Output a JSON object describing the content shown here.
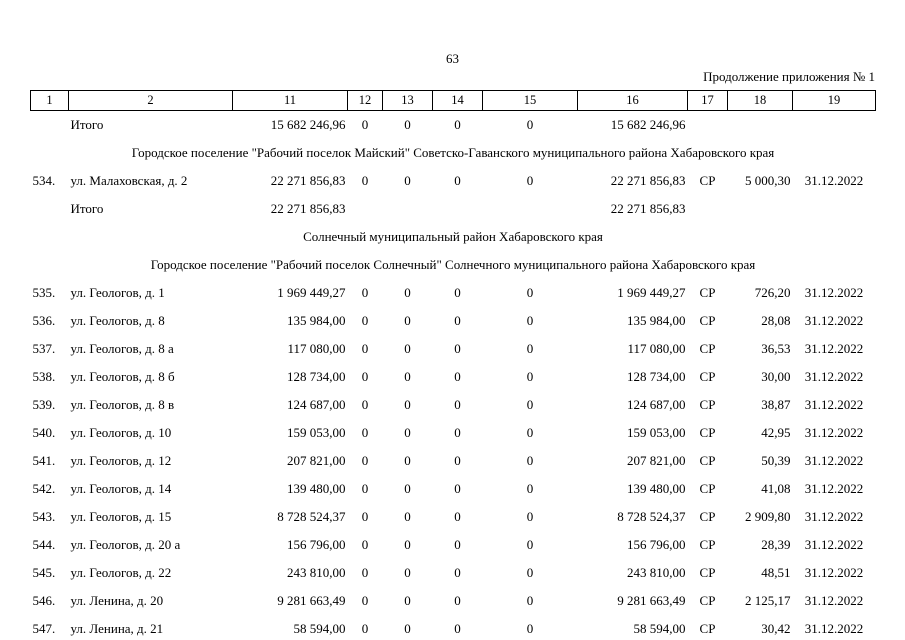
{
  "page": {
    "number": "63",
    "continuation_note": "Продолжение приложения № 1"
  },
  "table": {
    "columns": [
      "1",
      "2",
      "11",
      "12",
      "13",
      "14",
      "15",
      "16",
      "17",
      "18",
      "19"
    ],
    "rows": [
      {
        "type": "total",
        "label": "Итого",
        "col11": "15 682 246,96",
        "col12": "0",
        "col13": "0",
        "col14": "0",
        "col15": "0",
        "col16": "15 682 246,96"
      },
      {
        "type": "section",
        "text": "Городское поселение \"Рабочий поселок Майский\"  Советско-Гаванского муниципального района Хабаровского края"
      },
      {
        "type": "data",
        "num": "534.",
        "address": "ул. Малаховская, д. 2",
        "col11": "22 271 856,83",
        "col12": "0",
        "col13": "0",
        "col14": "0",
        "col15": "0",
        "col16": "22 271 856,83",
        "col17": "СР",
        "col18": "5 000,30",
        "col19": "31.12.2022"
      },
      {
        "type": "total",
        "label": "Итого",
        "col11": "22 271 856,83",
        "col16": "22 271 856,83"
      },
      {
        "type": "section",
        "text": "Солнечный муниципальный район Хабаровского края"
      },
      {
        "type": "section",
        "text": "Городское поселение \"Рабочий поселок Солнечный\" Солнечного муниципального района Хабаровского края"
      },
      {
        "type": "data",
        "num": "535.",
        "address": "ул. Геологов, д. 1",
        "col11": "1 969 449,27",
        "col12": "0",
        "col13": "0",
        "col14": "0",
        "col15": "0",
        "col16": "1 969 449,27",
        "col17": "СР",
        "col18": "726,20",
        "col19": "31.12.2022"
      },
      {
        "type": "data",
        "num": "536.",
        "address": "ул. Геологов, д. 8",
        "col11": "135 984,00",
        "col12": "0",
        "col13": "0",
        "col14": "0",
        "col15": "0",
        "col16": "135 984,00",
        "col17": "СР",
        "col18": "28,08",
        "col19": "31.12.2022"
      },
      {
        "type": "data",
        "num": "537.",
        "address": "ул. Геологов, д. 8 а",
        "col11": "117 080,00",
        "col12": "0",
        "col13": "0",
        "col14": "0",
        "col15": "0",
        "col16": "117 080,00",
        "col17": "СР",
        "col18": "36,53",
        "col19": "31.12.2022"
      },
      {
        "type": "data",
        "num": "538.",
        "address": "ул. Геологов, д. 8 б",
        "col11": "128 734,00",
        "col12": "0",
        "col13": "0",
        "col14": "0",
        "col15": "0",
        "col16": "128 734,00",
        "col17": "СР",
        "col18": "30,00",
        "col19": "31.12.2022"
      },
      {
        "type": "data",
        "num": "539.",
        "address": "ул. Геологов, д. 8 в",
        "col11": "124 687,00",
        "col12": "0",
        "col13": "0",
        "col14": "0",
        "col15": "0",
        "col16": "124 687,00",
        "col17": "СР",
        "col18": "38,87",
        "col19": "31.12.2022"
      },
      {
        "type": "data",
        "num": "540.",
        "address": "ул. Геологов, д. 10",
        "col11": "159 053,00",
        "col12": "0",
        "col13": "0",
        "col14": "0",
        "col15": "0",
        "col16": "159 053,00",
        "col17": "СР",
        "col18": "42,95",
        "col19": "31.12.2022"
      },
      {
        "type": "data",
        "num": "541.",
        "address": "ул. Геологов, д. 12",
        "col11": "207 821,00",
        "col12": "0",
        "col13": "0",
        "col14": "0",
        "col15": "0",
        "col16": "207 821,00",
        "col17": "СР",
        "col18": "50,39",
        "col19": "31.12.2022"
      },
      {
        "type": "data",
        "num": "542.",
        "address": "ул. Геологов, д. 14",
        "col11": "139 480,00",
        "col12": "0",
        "col13": "0",
        "col14": "0",
        "col15": "0",
        "col16": "139 480,00",
        "col17": "СР",
        "col18": "41,08",
        "col19": "31.12.2022"
      },
      {
        "type": "data",
        "num": "543.",
        "address": "ул. Геологов, д. 15",
        "col11": "8 728 524,37",
        "col12": "0",
        "col13": "0",
        "col14": "0",
        "col15": "0",
        "col16": "8 728 524,37",
        "col17": "СР",
        "col18": "2 909,80",
        "col19": "31.12.2022"
      },
      {
        "type": "data",
        "num": "544.",
        "address": "ул. Геологов, д. 20 а",
        "col11": "156 796,00",
        "col12": "0",
        "col13": "0",
        "col14": "0",
        "col15": "0",
        "col16": "156 796,00",
        "col17": "СР",
        "col18": "28,39",
        "col19": "31.12.2022"
      },
      {
        "type": "data",
        "num": "545.",
        "address": "ул. Геологов, д. 22",
        "col11": "243 810,00",
        "col12": "0",
        "col13": "0",
        "col14": "0",
        "col15": "0",
        "col16": "243 810,00",
        "col17": "СР",
        "col18": "48,51",
        "col19": "31.12.2022"
      },
      {
        "type": "data",
        "num": "546.",
        "address": "ул. Ленина, д. 20",
        "col11": "9 281 663,49",
        "col12": "0",
        "col13": "0",
        "col14": "0",
        "col15": "0",
        "col16": "9 281 663,49",
        "col17": "СР",
        "col18": "2 125,17",
        "col19": "31.12.2022"
      },
      {
        "type": "data",
        "num": "547.",
        "address": "ул. Ленина, д. 21",
        "col11": "58 594,00",
        "col12": "0",
        "col13": "0",
        "col14": "0",
        "col15": "0",
        "col16": "58 594,00",
        "col17": "СР",
        "col18": "30,42",
        "col19": "31.12.2022"
      }
    ]
  }
}
